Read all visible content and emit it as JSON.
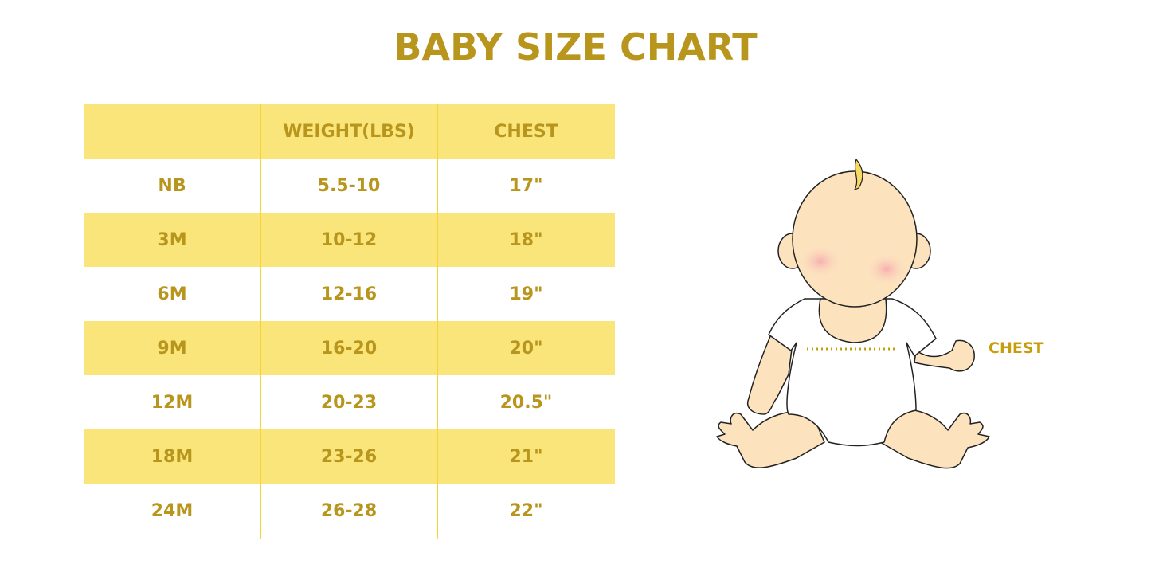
{
  "title": "BABY SIZE CHART",
  "colors": {
    "text": "#B8961E",
    "stripe": "#FAE57A",
    "divider": "#F5D43A",
    "skin": "#FCE3BE"
  },
  "table": {
    "headers": [
      "",
      "WEIGHT(LBS)",
      "CHEST"
    ],
    "rows": [
      [
        "NB",
        "5.5-10",
        "17\""
      ],
      [
        "3M",
        "10-12",
        "18\""
      ],
      [
        "6M",
        "12-16",
        "19\""
      ],
      [
        "9M",
        "16-20",
        "20\""
      ],
      [
        "12M",
        "20-23",
        "20.5\""
      ],
      [
        "18M",
        "23-26",
        "21\""
      ],
      [
        "24M",
        "26-28",
        "22\""
      ]
    ]
  },
  "illustration": {
    "chest_label": "CHEST"
  }
}
